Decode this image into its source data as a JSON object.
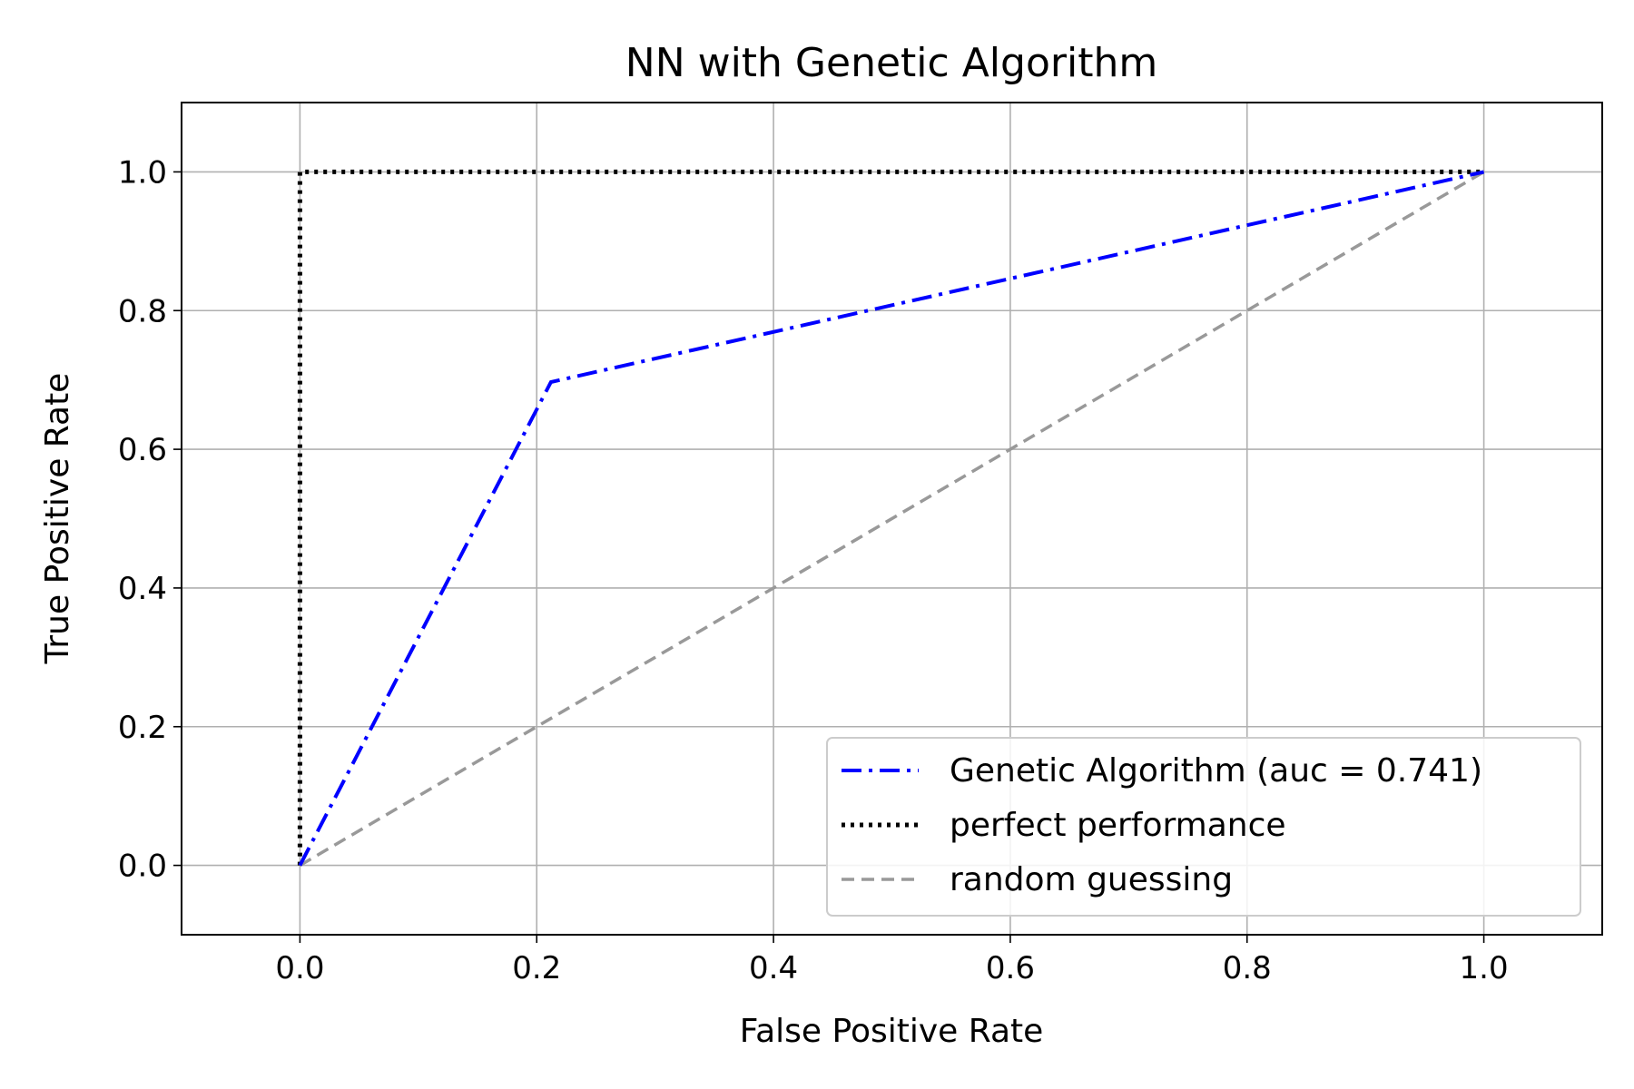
{
  "chart_data": {
    "type": "line",
    "title": "NN with Genetic Algorithm",
    "xlabel": "False Positive Rate",
    "ylabel": "True Positive Rate",
    "xlim": [
      -0.1,
      1.1
    ],
    "ylim": [
      -0.1,
      1.1
    ],
    "xticks": [
      0.0,
      0.2,
      0.4,
      0.6,
      0.8,
      1.0
    ],
    "yticks": [
      0.0,
      0.2,
      0.4,
      0.6,
      0.8,
      1.0
    ],
    "xtick_labels": [
      "0.0",
      "0.2",
      "0.4",
      "0.6",
      "0.8",
      "1.0"
    ],
    "ytick_labels": [
      "0.0",
      "0.2",
      "0.4",
      "0.6",
      "0.8",
      "1.0"
    ],
    "grid": true,
    "legend_position": "lower-right",
    "series": [
      {
        "name": "Genetic Algorithm (auc = 0.741)",
        "x": [
          0.0,
          0.212,
          1.0
        ],
        "y": [
          0.0,
          0.697,
          1.0
        ],
        "color": "#0000ff",
        "style": "dashdot"
      },
      {
        "name": "perfect performance",
        "x": [
          0.0,
          0.0,
          1.0
        ],
        "y": [
          0.0,
          1.0,
          1.0
        ],
        "color": "#000000",
        "style": "dotted"
      },
      {
        "name": "random guessing",
        "x": [
          0.0,
          1.0
        ],
        "y": [
          0.0,
          1.0
        ],
        "color": "#999999",
        "style": "dashed"
      }
    ]
  }
}
